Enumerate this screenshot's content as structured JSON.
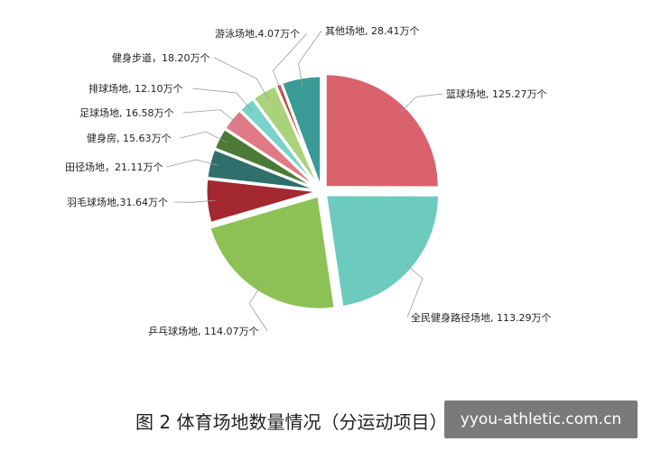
{
  "chart_data": {
    "type": "pie",
    "title": "图 2 体育场地数量情况（分运动项目）",
    "unit": "万个",
    "slices": [
      {
        "name": "篮球场地",
        "value": 125.27,
        "label": "篮球场地, 125.27万个",
        "color": "#d9626c"
      },
      {
        "name": "全民健身路径场地",
        "value": 113.29,
        "label": "全民健身路径场地, 113.29万个",
        "color": "#6ccbbd"
      },
      {
        "name": "乒乓球场地",
        "value": 114.07,
        "label": "乒乓球场地, 114.07万个",
        "color": "#8dc155"
      },
      {
        "name": "羽毛球场地",
        "value": 31.64,
        "label": "羽毛球场地,31.64万个",
        "color": "#a3282f"
      },
      {
        "name": "田径场地",
        "value": 21.11,
        "label": "田径场地，21.11万个",
        "color": "#2f6f6c"
      },
      {
        "name": "健身房",
        "value": 15.63,
        "label": "健身房, 15.63万个",
        "color": "#4a7a35"
      },
      {
        "name": "足球场地",
        "value": 16.58,
        "label": "足球场地, 16.58万个",
        "color": "#e07a86"
      },
      {
        "name": "排球场地",
        "value": 12.1,
        "label": "排球场地, 12.10万个",
        "color": "#79d3cb"
      },
      {
        "name": "健身步道",
        "value": 18.2,
        "label": "健身步道，18.20万个",
        "color": "#a9d27a"
      },
      {
        "name": "游泳场地",
        "value": 4.07,
        "label": "游泳场地,4.07万个",
        "color": "#c23b3b"
      },
      {
        "name": "其他场地",
        "value": 28.41,
        "label": "其他场地, 28.41万个",
        "color": "#3a9a96"
      }
    ]
  },
  "watermark": "yyou-athletic.com.cn"
}
